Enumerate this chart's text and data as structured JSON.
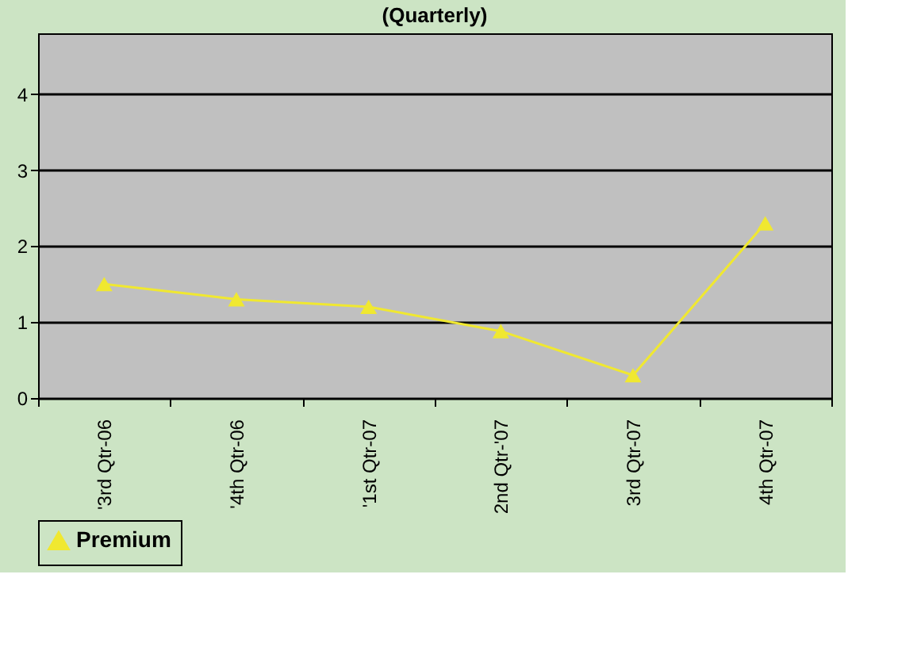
{
  "chart_data": {
    "type": "line",
    "title": "(Quarterly)",
    "categories": [
      "'3rd Qtr-06",
      "'4th Qtr-06",
      "'1st Qtr-07",
      "2nd Qtr-'07",
      "3rd Qtr-07",
      "4th Qtr-07"
    ],
    "series": [
      {
        "name": "Premium",
        "color": "#f0e830",
        "values": [
          1.5,
          1.3,
          1.2,
          0.88,
          0.3,
          2.3
        ]
      }
    ],
    "ylim": [
      0,
      4.8
    ],
    "yticks": [
      0,
      1,
      2,
      3,
      4
    ],
    "grid": "y",
    "legend": "bottom",
    "marker": "triangle",
    "line_style": "solid"
  }
}
